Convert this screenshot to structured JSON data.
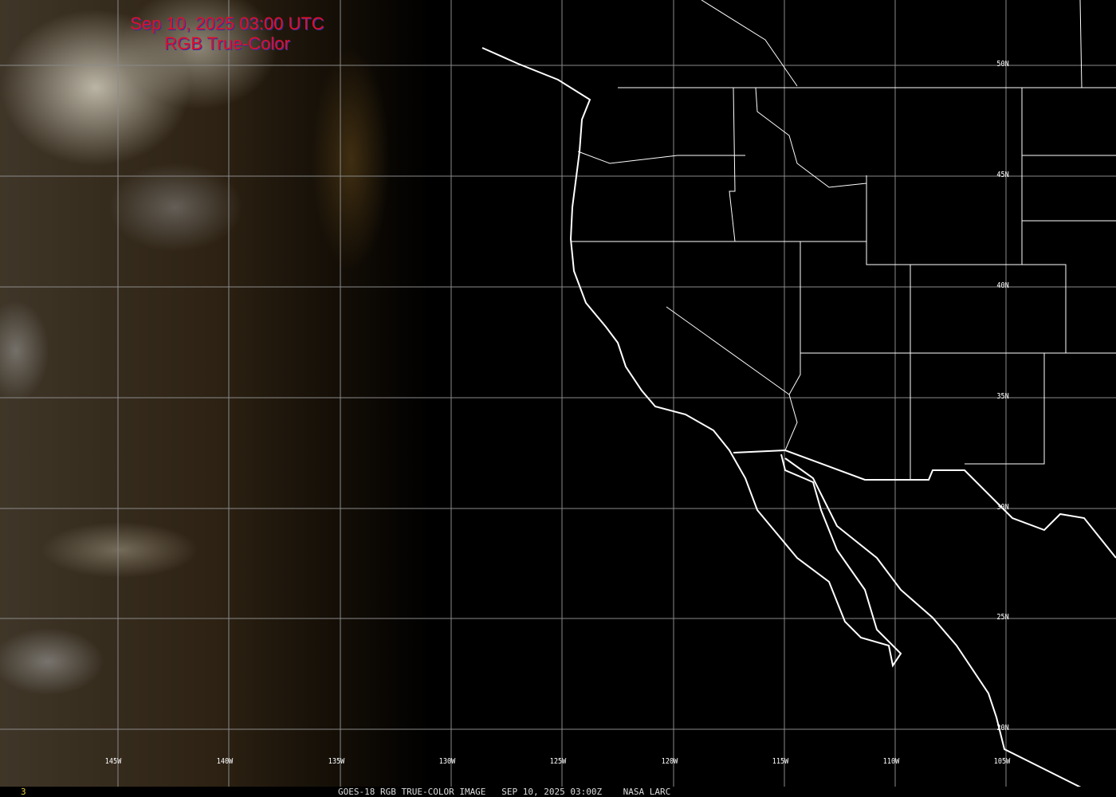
{
  "title": {
    "line1": "Sep 10, 2025 03:00 UTC",
    "line2": "RGB True-Color"
  },
  "colors": {
    "title": "#e0102a",
    "grid": "#8a8a8a",
    "boundaries": "#ffffff"
  },
  "latitude_labels": [
    "50N",
    "45N",
    "40N",
    "35N",
    "30N",
    "25N",
    "20N"
  ],
  "longitude_labels": [
    "145W",
    "140W",
    "135W",
    "130W",
    "125W",
    "120W",
    "115W",
    "110W",
    "105W"
  ],
  "footer": {
    "frame": "3",
    "caption": "GOES-18 RGB TRUE-COLOR IMAGE   SEP 10, 2025 03:00Z    NASA LARC"
  }
}
